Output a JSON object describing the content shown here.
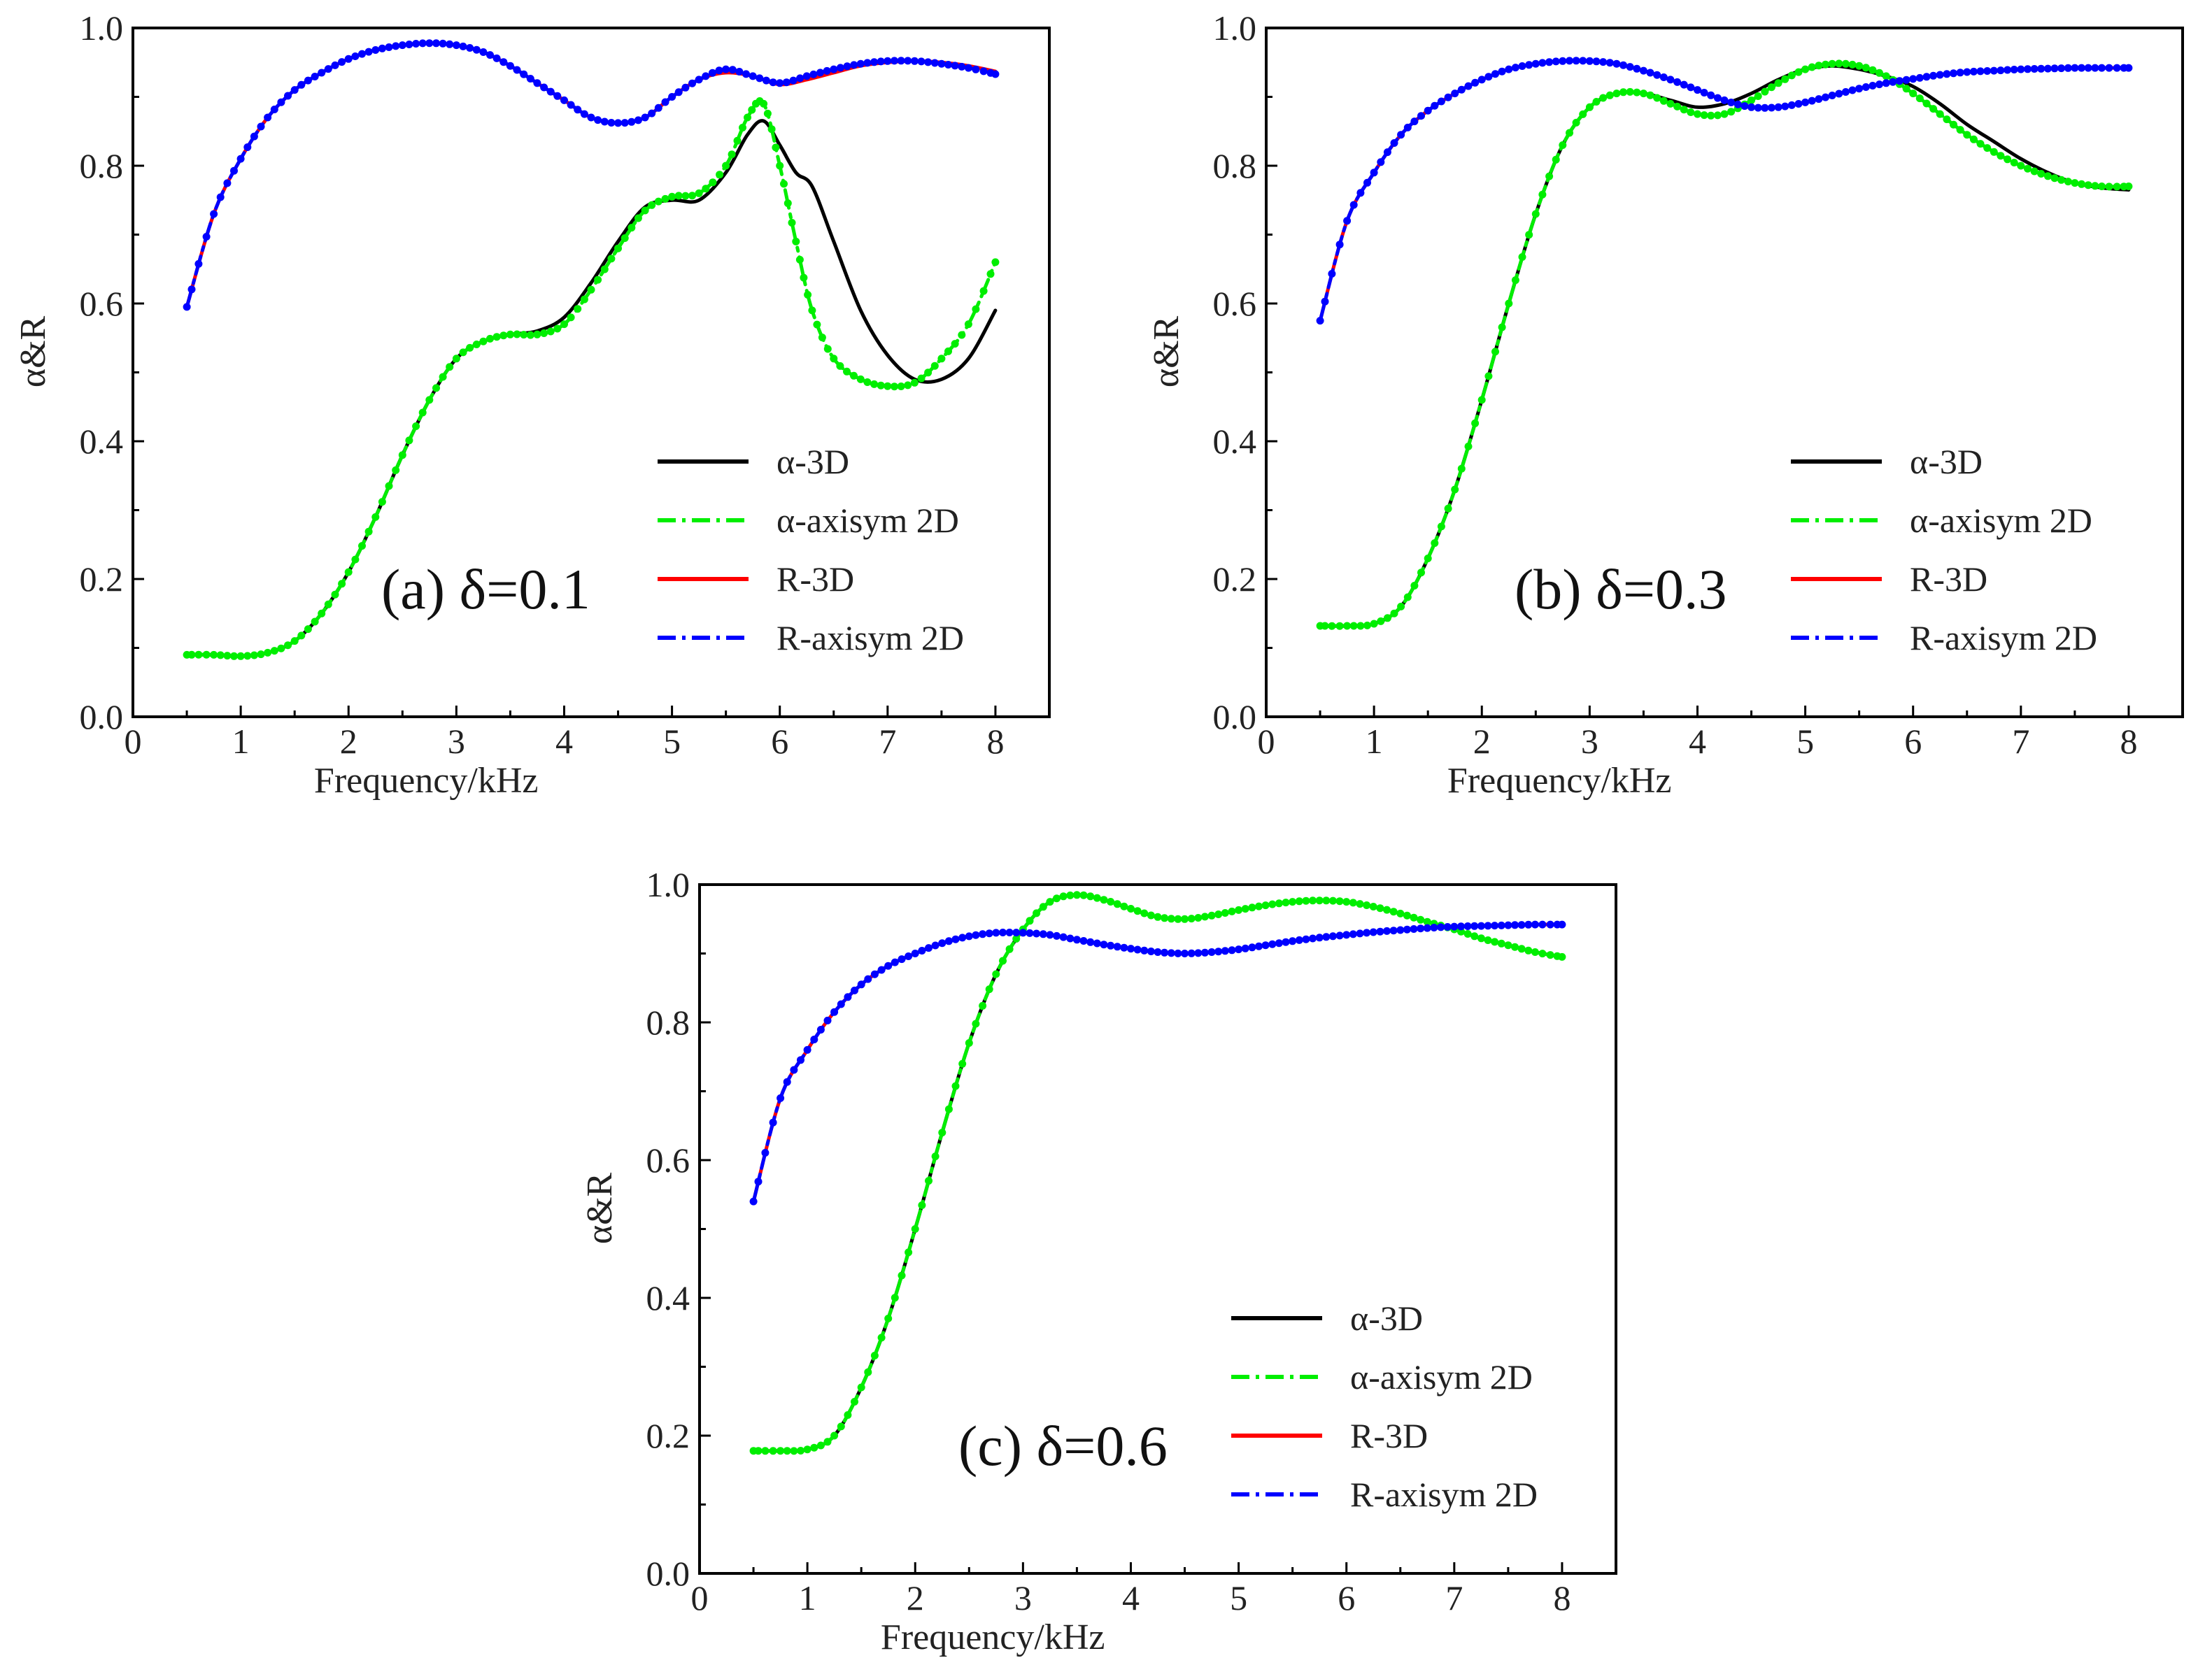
{
  "figure": {
    "legend_labels": [
      "α-3D",
      "α-axisym 2D",
      "R-3D",
      "R-axisym 2D"
    ],
    "colors": {
      "alpha_3d": "#000000",
      "alpha_axisym": "#00ee00",
      "r_3d": "#ff0000",
      "r_axisym": "#0000ff"
    }
  },
  "chart_data": [
    {
      "type": "line",
      "id": "a",
      "annotation": "(a) δ=0.1",
      "xlabel": "Frequency/kHz",
      "ylabel": "α&R",
      "xlim": [
        0,
        8.5
      ],
      "ylim": [
        0,
        1.0
      ],
      "xticks": [
        "0",
        "1",
        "2",
        "3",
        "4",
        "5",
        "6",
        "7",
        "8"
      ],
      "yticks": [
        "0.0",
        "0.2",
        "0.4",
        "0.6",
        "0.8",
        "1.0"
      ],
      "legend_position": "lower-right",
      "series": [
        {
          "name": "α-3D",
          "style": "solid",
          "color": "#000000",
          "x": [
            0.5,
            0.75,
            1.0,
            1.25,
            1.5,
            1.75,
            2.0,
            2.25,
            2.5,
            2.75,
            3.0,
            3.25,
            3.5,
            3.75,
            4.0,
            4.25,
            4.5,
            4.75,
            5.0,
            5.25,
            5.5,
            5.7,
            5.85,
            6.0,
            6.15,
            6.3,
            6.5,
            6.75,
            7.0,
            7.25,
            7.5,
            7.75,
            8.0
          ],
          "y": [
            0.09,
            0.09,
            0.088,
            0.093,
            0.11,
            0.15,
            0.21,
            0.29,
            0.38,
            0.46,
            0.52,
            0.545,
            0.555,
            0.56,
            0.58,
            0.63,
            0.69,
            0.74,
            0.75,
            0.75,
            0.79,
            0.845,
            0.865,
            0.83,
            0.79,
            0.77,
            0.69,
            0.59,
            0.525,
            0.49,
            0.49,
            0.52,
            0.59
          ]
        },
        {
          "name": "α-axisym 2D",
          "style": "dashdot",
          "color": "#00ee00",
          "x": [
            0.5,
            0.75,
            1.0,
            1.25,
            1.5,
            1.75,
            2.0,
            2.25,
            2.5,
            2.75,
            3.0,
            3.25,
            3.5,
            3.75,
            4.0,
            4.25,
            4.5,
            4.75,
            5.0,
            5.25,
            5.5,
            5.7,
            5.85,
            6.0,
            6.15,
            6.3,
            6.5,
            6.75,
            7.0,
            7.25,
            7.5,
            7.75,
            8.0
          ],
          "y": [
            0.09,
            0.09,
            0.088,
            0.093,
            0.11,
            0.15,
            0.21,
            0.29,
            0.38,
            0.46,
            0.52,
            0.545,
            0.555,
            0.555,
            0.57,
            0.62,
            0.68,
            0.735,
            0.755,
            0.76,
            0.8,
            0.87,
            0.89,
            0.8,
            0.69,
            0.59,
            0.52,
            0.49,
            0.48,
            0.485,
            0.52,
            0.57,
            0.66
          ]
        },
        {
          "name": "R-3D",
          "style": "solid",
          "color": "#ff0000",
          "x": [
            0.5,
            0.75,
            1.0,
            1.25,
            1.5,
            1.75,
            2.0,
            2.25,
            2.5,
            2.75,
            3.0,
            3.25,
            3.5,
            3.75,
            4.0,
            4.25,
            4.5,
            4.75,
            5.0,
            5.25,
            5.5,
            5.75,
            6.0,
            6.25,
            6.5,
            6.75,
            7.0,
            7.25,
            7.5,
            7.75,
            8.0
          ],
          "y": [
            0.595,
            0.73,
            0.81,
            0.87,
            0.91,
            0.935,
            0.955,
            0.968,
            0.975,
            0.978,
            0.975,
            0.965,
            0.945,
            0.92,
            0.895,
            0.87,
            0.862,
            0.87,
            0.9,
            0.925,
            0.935,
            0.93,
            0.918,
            0.925,
            0.935,
            0.945,
            0.95,
            0.952,
            0.95,
            0.945,
            0.937
          ]
        },
        {
          "name": "R-axisym 2D",
          "style": "dashdot",
          "color": "#0000ff",
          "x": [
            0.5,
            0.75,
            1.0,
            1.25,
            1.5,
            1.75,
            2.0,
            2.25,
            2.5,
            2.75,
            3.0,
            3.25,
            3.5,
            3.75,
            4.0,
            4.25,
            4.5,
            4.75,
            5.0,
            5.25,
            5.5,
            5.75,
            6.0,
            6.25,
            6.5,
            6.75,
            7.0,
            7.25,
            7.5,
            7.75,
            8.0
          ],
          "y": [
            0.595,
            0.73,
            0.81,
            0.87,
            0.91,
            0.935,
            0.955,
            0.968,
            0.975,
            0.978,
            0.975,
            0.965,
            0.945,
            0.92,
            0.895,
            0.87,
            0.862,
            0.87,
            0.9,
            0.925,
            0.94,
            0.93,
            0.92,
            0.93,
            0.94,
            0.948,
            0.952,
            0.952,
            0.948,
            0.942,
            0.933
          ]
        }
      ]
    },
    {
      "type": "line",
      "id": "b",
      "annotation": "(b) δ=0.3",
      "xlabel": "Frequency/kHz",
      "ylabel": "α&R",
      "xlim": [
        0,
        8.5
      ],
      "ylim": [
        0,
        1.0
      ],
      "xticks": [
        "0",
        "1",
        "2",
        "3",
        "4",
        "5",
        "6",
        "7",
        "8"
      ],
      "yticks": [
        "0.0",
        "0.2",
        "0.4",
        "0.6",
        "0.8",
        "1.0"
      ],
      "legend_position": "lower-right",
      "series": [
        {
          "name": "α-3D",
          "style": "solid",
          "color": "#000000",
          "x": [
            0.5,
            0.75,
            1.0,
            1.25,
            1.5,
            1.75,
            2.0,
            2.25,
            2.5,
            2.75,
            3.0,
            3.25,
            3.5,
            3.75,
            4.0,
            4.25,
            4.5,
            4.75,
            5.0,
            5.25,
            5.5,
            5.75,
            6.0,
            6.25,
            6.5,
            6.75,
            7.0,
            7.25,
            7.5,
            7.75,
            8.0
          ],
          "y": [
            0.132,
            0.132,
            0.135,
            0.16,
            0.23,
            0.33,
            0.46,
            0.6,
            0.73,
            0.83,
            0.885,
            0.905,
            0.905,
            0.895,
            0.885,
            0.89,
            0.905,
            0.925,
            0.94,
            0.945,
            0.94,
            0.93,
            0.915,
            0.89,
            0.86,
            0.835,
            0.81,
            0.79,
            0.775,
            0.768,
            0.765
          ]
        },
        {
          "name": "α-axisym 2D",
          "style": "dashdot",
          "color": "#00ee00",
          "x": [
            0.5,
            0.75,
            1.0,
            1.25,
            1.5,
            1.75,
            2.0,
            2.25,
            2.5,
            2.75,
            3.0,
            3.25,
            3.5,
            3.75,
            4.0,
            4.25,
            4.5,
            4.75,
            5.0,
            5.25,
            5.5,
            5.75,
            6.0,
            6.25,
            6.5,
            6.75,
            7.0,
            7.25,
            7.5,
            7.75,
            8.0
          ],
          "y": [
            0.132,
            0.132,
            0.135,
            0.16,
            0.23,
            0.33,
            0.46,
            0.6,
            0.73,
            0.83,
            0.885,
            0.905,
            0.905,
            0.89,
            0.875,
            0.875,
            0.895,
            0.92,
            0.94,
            0.948,
            0.945,
            0.93,
            0.905,
            0.875,
            0.845,
            0.82,
            0.8,
            0.785,
            0.775,
            0.77,
            0.77
          ]
        },
        {
          "name": "R-3D",
          "style": "solid",
          "color": "#ff0000",
          "x": [
            0.5,
            0.75,
            1.0,
            1.25,
            1.5,
            1.75,
            2.0,
            2.25,
            2.5,
            2.75,
            3.0,
            3.25,
            3.5,
            3.75,
            4.0,
            4.25,
            4.5,
            4.75,
            5.0,
            5.25,
            5.5,
            5.75,
            6.0,
            6.25,
            6.5,
            6.75,
            7.0,
            7.25,
            7.5,
            7.75,
            8.0
          ],
          "y": [
            0.575,
            0.72,
            0.79,
            0.845,
            0.88,
            0.905,
            0.925,
            0.94,
            0.948,
            0.952,
            0.952,
            0.948,
            0.938,
            0.925,
            0.91,
            0.895,
            0.885,
            0.885,
            0.892,
            0.902,
            0.912,
            0.92,
            0.926,
            0.932,
            0.936,
            0.938,
            0.94,
            0.941,
            0.942,
            0.942,
            0.942
          ]
        },
        {
          "name": "R-axisym 2D",
          "style": "dashdot",
          "color": "#0000ff",
          "x": [
            0.5,
            0.75,
            1.0,
            1.25,
            1.5,
            1.75,
            2.0,
            2.25,
            2.5,
            2.75,
            3.0,
            3.25,
            3.5,
            3.75,
            4.0,
            4.25,
            4.5,
            4.75,
            5.0,
            5.25,
            5.5,
            5.75,
            6.0,
            6.25,
            6.5,
            6.75,
            7.0,
            7.25,
            7.5,
            7.75,
            8.0
          ],
          "y": [
            0.575,
            0.72,
            0.79,
            0.845,
            0.88,
            0.905,
            0.925,
            0.94,
            0.948,
            0.952,
            0.952,
            0.948,
            0.938,
            0.925,
            0.91,
            0.895,
            0.885,
            0.885,
            0.892,
            0.902,
            0.912,
            0.92,
            0.926,
            0.932,
            0.936,
            0.938,
            0.94,
            0.941,
            0.942,
            0.942,
            0.942
          ]
        }
      ]
    },
    {
      "type": "line",
      "id": "c",
      "annotation": "(c) δ=0.6",
      "xlabel": "Frequency/kHz",
      "ylabel": "α&R",
      "xlim": [
        0,
        8.5
      ],
      "ylim": [
        0,
        1.0
      ],
      "xticks": [
        "0",
        "1",
        "2",
        "3",
        "4",
        "5",
        "6",
        "7",
        "8"
      ],
      "yticks": [
        "0.0",
        "0.2",
        "0.4",
        "0.6",
        "0.8",
        "1.0"
      ],
      "legend_position": "lower-right",
      "series": [
        {
          "name": "α-3D",
          "style": "solid",
          "color": "#000000",
          "x": [
            0.5,
            0.75,
            1.0,
            1.25,
            1.5,
            1.75,
            2.0,
            2.25,
            2.5,
            2.75,
            3.0,
            3.25,
            3.5,
            3.75,
            4.0,
            4.25,
            4.5,
            4.75,
            5.0,
            5.25,
            5.5,
            5.75,
            6.0,
            6.25,
            6.5,
            6.75,
            7.0,
            7.25,
            7.5,
            7.75,
            8.0
          ],
          "y": [
            0.178,
            0.178,
            0.18,
            0.2,
            0.27,
            0.37,
            0.5,
            0.64,
            0.77,
            0.87,
            0.935,
            0.975,
            0.985,
            0.978,
            0.965,
            0.953,
            0.95,
            0.955,
            0.963,
            0.97,
            0.975,
            0.977,
            0.975,
            0.968,
            0.958,
            0.946,
            0.935,
            0.922,
            0.912,
            0.902,
            0.895
          ]
        },
        {
          "name": "α-axisym 2D",
          "style": "dashdot",
          "color": "#00ee00",
          "x": [
            0.5,
            0.75,
            1.0,
            1.25,
            1.5,
            1.75,
            2.0,
            2.25,
            2.5,
            2.75,
            3.0,
            3.25,
            3.5,
            3.75,
            4.0,
            4.25,
            4.5,
            4.75,
            5.0,
            5.25,
            5.5,
            5.75,
            6.0,
            6.25,
            6.5,
            6.75,
            7.0,
            7.25,
            7.5,
            7.75,
            8.0
          ],
          "y": [
            0.178,
            0.178,
            0.18,
            0.2,
            0.27,
            0.37,
            0.5,
            0.64,
            0.77,
            0.87,
            0.935,
            0.975,
            0.985,
            0.978,
            0.965,
            0.953,
            0.95,
            0.955,
            0.963,
            0.97,
            0.975,
            0.977,
            0.975,
            0.968,
            0.958,
            0.946,
            0.935,
            0.922,
            0.912,
            0.902,
            0.895
          ]
        },
        {
          "name": "R-3D",
          "style": "solid",
          "color": "#ff0000",
          "x": [
            0.5,
            0.75,
            1.0,
            1.25,
            1.5,
            1.75,
            2.0,
            2.25,
            2.5,
            2.75,
            3.0,
            3.25,
            3.5,
            3.75,
            4.0,
            4.25,
            4.5,
            4.75,
            5.0,
            5.25,
            5.5,
            5.75,
            6.0,
            6.25,
            6.5,
            6.75,
            7.0,
            7.25,
            7.5,
            7.75,
            8.0
          ],
          "y": [
            0.54,
            0.69,
            0.76,
            0.815,
            0.855,
            0.882,
            0.9,
            0.915,
            0.925,
            0.93,
            0.93,
            0.927,
            0.92,
            0.913,
            0.907,
            0.902,
            0.9,
            0.902,
            0.906,
            0.912,
            0.918,
            0.923,
            0.927,
            0.931,
            0.934,
            0.937,
            0.939,
            0.94,
            0.941,
            0.942,
            0.942
          ]
        },
        {
          "name": "R-axisym 2D",
          "style": "dashdot",
          "color": "#0000ff",
          "x": [
            0.5,
            0.75,
            1.0,
            1.25,
            1.5,
            1.75,
            2.0,
            2.25,
            2.5,
            2.75,
            3.0,
            3.25,
            3.5,
            3.75,
            4.0,
            4.25,
            4.5,
            4.75,
            5.0,
            5.25,
            5.5,
            5.75,
            6.0,
            6.25,
            6.5,
            6.75,
            7.0,
            7.25,
            7.5,
            7.75,
            8.0
          ],
          "y": [
            0.54,
            0.69,
            0.76,
            0.815,
            0.855,
            0.882,
            0.9,
            0.915,
            0.925,
            0.93,
            0.93,
            0.927,
            0.92,
            0.913,
            0.907,
            0.902,
            0.9,
            0.902,
            0.906,
            0.912,
            0.918,
            0.923,
            0.927,
            0.931,
            0.934,
            0.937,
            0.939,
            0.94,
            0.941,
            0.942,
            0.942
          ]
        }
      ]
    }
  ]
}
